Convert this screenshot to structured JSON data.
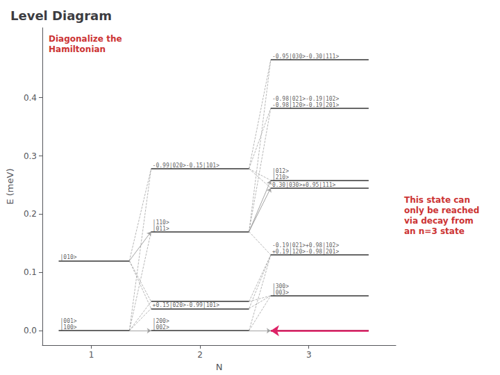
{
  "chart_data": {
    "type": "line",
    "title": "Level Diagram",
    "xlabel": "N",
    "ylabel": "E (meV)",
    "xlim": [
      0.55,
      3.8
    ],
    "ylim": [
      -0.025,
      0.52
    ],
    "xticks": [
      1,
      2,
      3
    ],
    "yticks": [
      {
        "value": 0.0,
        "label": "0.0"
      },
      0.1,
      0.2,
      0.3,
      0.4
    ],
    "grid": false,
    "levels": [
      {
        "x1": 0.7,
        "x2": 1.35,
        "E": 0.0,
        "label": "|001>\n|100>"
      },
      {
        "x1": 0.7,
        "x2": 1.35,
        "E": 0.12,
        "label": "|010>"
      },
      {
        "x1": 1.55,
        "x2": 2.45,
        "E": 0.0,
        "label": "|200>\n|002>"
      },
      {
        "x1": 1.55,
        "x2": 2.45,
        "E": 0.038,
        "label": "+0.15|020>-0.99|101>"
      },
      {
        "x1": 1.55,
        "x2": 2.45,
        "E": 0.05,
        "label": null
      },
      {
        "x1": 1.55,
        "x2": 2.45,
        "E": 0.17,
        "label": "|110>\n|011>"
      },
      {
        "x1": 1.55,
        "x2": 2.45,
        "E": 0.278,
        "label": "-0.99|020>-0.15|101>"
      },
      {
        "x1": 2.65,
        "x2": 3.55,
        "E": 0.0,
        "label": null
      },
      {
        "x1": 2.65,
        "x2": 3.55,
        "E": 0.06,
        "label": "|300>\n|003>"
      },
      {
        "x1": 2.65,
        "x2": 3.55,
        "E": 0.13,
        "label": "-0.19|021>+0.98|102>\n+0.19|120>-0.98|201>"
      },
      {
        "x1": 2.65,
        "x2": 3.55,
        "E": 0.245,
        "label": "0.30|030>+0.95|111>"
      },
      {
        "x1": 2.65,
        "x2": 3.55,
        "E": 0.258,
        "label": "|012>\n|210>"
      },
      {
        "x1": 2.65,
        "x2": 3.55,
        "E": 0.382,
        "label": "-0.98|021>-0.19|102>\n-0.98|120>-0.19|201>"
      },
      {
        "x1": 2.65,
        "x2": 3.55,
        "E": 0.465,
        "label": "-0.95|030>-0.30|111>"
      }
    ],
    "connections": [
      {
        "x1": 1.35,
        "y1": 0.0,
        "x2": 1.55,
        "y2": 0.0,
        "line_style": "solid",
        "marker": "arrow"
      },
      {
        "x1": 1.35,
        "y1": 0.0,
        "x2": 1.55,
        "y2": 0.038,
        "line_style": "dashed",
        "marker": "none"
      },
      {
        "x1": 1.35,
        "y1": 0.0,
        "x2": 1.55,
        "y2": 0.05,
        "line_style": "dashed",
        "marker": "none"
      },
      {
        "x1": 1.35,
        "y1": 0.0,
        "x2": 1.55,
        "y2": 0.17,
        "line_style": "dashed",
        "marker": "none"
      },
      {
        "x1": 1.35,
        "y1": 0.0,
        "x2": 1.55,
        "y2": 0.278,
        "line_style": "dashed",
        "marker": "none"
      },
      {
        "x1": 1.35,
        "y1": 0.12,
        "x2": 1.55,
        "y2": 0.038,
        "line_style": "dashed",
        "marker": "none"
      },
      {
        "x1": 1.35,
        "y1": 0.12,
        "x2": 1.55,
        "y2": 0.05,
        "line_style": "dashed",
        "marker": "none"
      },
      {
        "x1": 1.35,
        "y1": 0.12,
        "x2": 1.55,
        "y2": 0.17,
        "line_style": "solid",
        "marker": "arrow"
      },
      {
        "x1": 1.35,
        "y1": 0.12,
        "x2": 1.55,
        "y2": 0.278,
        "line_style": "dashed",
        "marker": "none"
      },
      {
        "x1": 2.45,
        "y1": 0.0,
        "x2": 2.65,
        "y2": 0.0,
        "line_style": "solid",
        "marker": "arrow"
      },
      {
        "x1": 2.45,
        "y1": 0.0,
        "x2": 2.65,
        "y2": 0.06,
        "line_style": "dashed",
        "marker": "none"
      },
      {
        "x1": 2.45,
        "y1": 0.0,
        "x2": 2.65,
        "y2": 0.13,
        "line_style": "dashed",
        "marker": "none"
      },
      {
        "x1": 2.45,
        "y1": 0.038,
        "x2": 2.65,
        "y2": 0.06,
        "line_style": "dashed",
        "marker": "none"
      },
      {
        "x1": 2.45,
        "y1": 0.038,
        "x2": 2.65,
        "y2": 0.13,
        "line_style": "dashed",
        "marker": "none"
      },
      {
        "x1": 2.45,
        "y1": 0.05,
        "x2": 2.65,
        "y2": 0.06,
        "line_style": "dashed",
        "marker": "none"
      },
      {
        "x1": 2.45,
        "y1": 0.05,
        "x2": 2.65,
        "y2": 0.13,
        "line_style": "dashed",
        "marker": "none"
      },
      {
        "x1": 2.45,
        "y1": 0.17,
        "x2": 2.65,
        "y2": 0.13,
        "line_style": "dashed",
        "marker": "none"
      },
      {
        "x1": 2.45,
        "y1": 0.17,
        "x2": 2.65,
        "y2": 0.245,
        "line_style": "solid",
        "marker": "arrow"
      },
      {
        "x1": 2.45,
        "y1": 0.17,
        "x2": 2.65,
        "y2": 0.258,
        "line_style": "solid",
        "marker": "arrow"
      },
      {
        "x1": 2.45,
        "y1": 0.17,
        "x2": 2.65,
        "y2": 0.382,
        "line_style": "dashed",
        "marker": "none"
      },
      {
        "x1": 2.45,
        "y1": 0.17,
        "x2": 2.65,
        "y2": 0.465,
        "line_style": "dashed",
        "marker": "none"
      },
      {
        "x1": 2.45,
        "y1": 0.278,
        "x2": 2.65,
        "y2": 0.245,
        "line_style": "dashed",
        "marker": "none"
      },
      {
        "x1": 2.45,
        "y1": 0.278,
        "x2": 2.65,
        "y2": 0.258,
        "line_style": "dashed",
        "marker": "none"
      },
      {
        "x1": 2.45,
        "y1": 0.278,
        "x2": 2.65,
        "y2": 0.382,
        "line_style": "dashed",
        "marker": "none"
      },
      {
        "x1": 2.45,
        "y1": 0.278,
        "x2": 2.65,
        "y2": 0.465,
        "line_style": "dashed",
        "marker": "none"
      }
    ],
    "annotations": [
      {
        "text": "Diagonalize the\nHamiltonian",
        "color": "#CC3333"
      },
      {
        "text": "This state can\nonly be reached\nvia decay from\nan n=3 state",
        "color": "#CC3333",
        "arrow": {
          "x1": 3.55,
          "y1": 0.0,
          "x2": 2.65,
          "y2": 0.0,
          "color": "#DD2266"
        }
      }
    ]
  }
}
